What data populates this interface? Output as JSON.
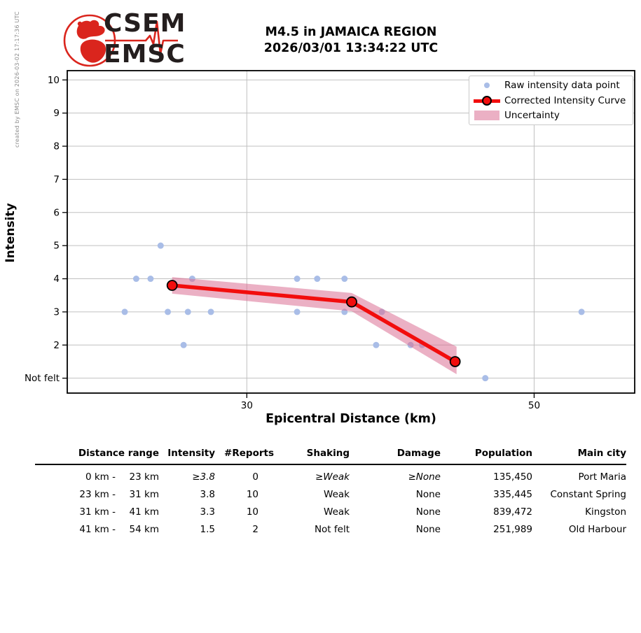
{
  "meta": {
    "created_by": "created by EMSC on 2026-03-02 17:17:36 UTC"
  },
  "logo": {
    "line1": "CSEM",
    "line2": "EMSC"
  },
  "header": {
    "title_line1": "M4.5 in JAMAICA REGION",
    "title_line2": "2026/03/01 13:34:22 UTC"
  },
  "chart_data": {
    "type": "line",
    "xlabel": "Epicentral Distance (km)",
    "ylabel": "Intensity",
    "xlim": [
      17.5,
      57.0
    ],
    "ylim": [
      0.55,
      10.28
    ],
    "grid": true,
    "x_ticks": [
      {
        "value": 30,
        "label": "30"
      },
      {
        "value": 50,
        "label": "50"
      }
    ],
    "y_ticks": [
      {
        "value": 1,
        "label": "Not felt"
      },
      {
        "value": 2,
        "label": "2"
      },
      {
        "value": 3,
        "label": "3"
      },
      {
        "value": 4,
        "label": "4"
      },
      {
        "value": 5,
        "label": "5"
      },
      {
        "value": 6,
        "label": "6"
      },
      {
        "value": 7,
        "label": "7"
      },
      {
        "value": 8,
        "label": "8"
      },
      {
        "value": 9,
        "label": "9"
      },
      {
        "value": 10,
        "label": "10"
      }
    ],
    "raw_points": [
      [
        24.0,
        5
      ],
      [
        22.3,
        4
      ],
      [
        23.3,
        4
      ],
      [
        26.2,
        4
      ],
      [
        33.5,
        4
      ],
      [
        34.9,
        4
      ],
      [
        36.8,
        4
      ],
      [
        21.5,
        3
      ],
      [
        24.5,
        3
      ],
      [
        25.9,
        3
      ],
      [
        27.5,
        3
      ],
      [
        33.5,
        3
      ],
      [
        36.8,
        3
      ],
      [
        39.4,
        3
      ],
      [
        53.3,
        3
      ],
      [
        25.6,
        2
      ],
      [
        39.0,
        2
      ],
      [
        41.4,
        2
      ],
      [
        42.2,
        2
      ],
      [
        46.6,
        1
      ]
    ],
    "corrected_curve": [
      [
        24.8,
        3.8
      ],
      [
        37.3,
        3.3
      ],
      [
        44.5,
        1.5
      ]
    ],
    "uncertainty_band": {
      "upper": [
        [
          24.8,
          4.05
        ],
        [
          37.3,
          3.57
        ],
        [
          44.6,
          1.95
        ]
      ],
      "lower": [
        [
          24.8,
          3.55
        ],
        [
          37.3,
          3.02
        ],
        [
          44.6,
          1.12
        ]
      ]
    },
    "legend_position": "upper right",
    "colors": {
      "raw_point": "#a9bde7",
      "curve": "#f20d0d",
      "band": "rgba(219,112,147,0.55)",
      "grid": "#c0c0c0",
      "spine": "#000000"
    }
  },
  "legend": {
    "items": [
      {
        "label": "Raw intensity data point"
      },
      {
        "label": "Corrected Intensity Curve"
      },
      {
        "label": "Uncertainty"
      }
    ]
  },
  "table": {
    "headers": {
      "distance_range": "Distance range",
      "intensity": "Intensity",
      "reports": "#Reports",
      "shaking": "Shaking",
      "damage": "Damage",
      "population": "Population",
      "main_city": "Main city"
    },
    "rows": [
      {
        "range_from": "0 km -",
        "range_to": "23 km",
        "intensity": "≥3.8",
        "reports": "0",
        "shaking": "≥Weak",
        "damage": "≥None",
        "population": "135,450",
        "city": "Port Maria",
        "estimated": true
      },
      {
        "range_from": "23 km -",
        "range_to": "31 km",
        "intensity": "3.8",
        "reports": "10",
        "shaking": "Weak",
        "damage": "None",
        "population": "335,445",
        "city": "Constant Spring",
        "estimated": false
      },
      {
        "range_from": "31 km -",
        "range_to": "41 km",
        "intensity": "3.3",
        "reports": "10",
        "shaking": "Weak",
        "damage": "None",
        "population": "839,472",
        "city": "Kingston",
        "estimated": false
      },
      {
        "range_from": "41 km -",
        "range_to": "54 km",
        "intensity": "1.5",
        "reports": "2",
        "shaking": "Not felt",
        "damage": "None",
        "population": "251,989",
        "city": "Old Harbour",
        "estimated": false
      }
    ]
  }
}
